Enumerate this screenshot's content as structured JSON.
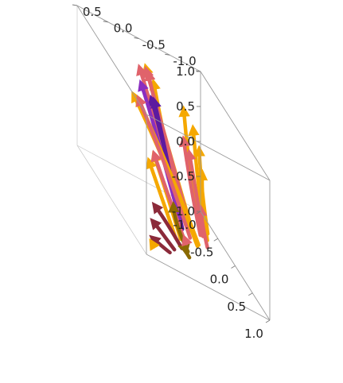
{
  "chart_data": {
    "type": "vector-stream-3d",
    "title": "",
    "xlabel": "",
    "ylabel": "",
    "zlabel": "",
    "x_range": [
      -1.0,
      1.0
    ],
    "y_range": [
      -1.0,
      1.0
    ],
    "z_range": [
      -1.0,
      1.0
    ],
    "x_ticks": [
      "-1.0",
      "-0.5",
      "0.0",
      "0.5",
      "1.0"
    ],
    "y_ticks": [
      "-1.0",
      "-0.5",
      "0.0",
      "0.5",
      "1.0"
    ],
    "z_ticks": [
      "-1.0",
      "-0.5",
      "0.0",
      "0.5",
      "1.0"
    ],
    "box": true,
    "colors": {
      "gold": "#f5a800",
      "salmon": "#e0636b",
      "purple": "#5c1aa0",
      "violet": "#8a2ec0",
      "maroon": "#8b2a3a",
      "olive": "#8a6a00"
    },
    "streamlines": [
      {
        "color": "gold",
        "points": [
          [
            0.3,
            -0.15,
            -0.7
          ],
          [
            0.05,
            0.0,
            -0.1
          ],
          [
            -0.15,
            0.15,
            0.5
          ],
          [
            -0.3,
            0.28,
            1.0
          ]
        ]
      },
      {
        "color": "gold",
        "points": [
          [
            0.18,
            -0.1,
            -0.7
          ],
          [
            -0.02,
            0.05,
            -0.1
          ],
          [
            -0.12,
            0.15,
            0.5
          ],
          [
            -0.18,
            0.22,
            0.9
          ]
        ]
      },
      {
        "color": "salmon",
        "points": [
          [
            0.26,
            -0.14,
            -0.7
          ],
          [
            0.0,
            0.04,
            -0.1
          ],
          [
            -0.18,
            0.17,
            0.5
          ],
          [
            -0.26,
            0.26,
            0.95
          ]
        ]
      },
      {
        "color": "salmon",
        "points": [
          [
            0.05,
            -0.1,
            -0.7
          ],
          [
            -0.2,
            0.0,
            -0.1
          ],
          [
            -0.45,
            0.1,
            0.4
          ],
          [
            -0.62,
            0.2,
            0.78
          ]
        ]
      },
      {
        "color": "salmon",
        "points": [
          [
            0.15,
            -0.18,
            -0.7
          ],
          [
            -0.1,
            -0.05,
            -0.1
          ],
          [
            -0.35,
            0.05,
            0.45
          ],
          [
            -0.52,
            0.15,
            0.85
          ]
        ]
      },
      {
        "color": "purple",
        "points": [
          [
            0.35,
            0.05,
            -0.7
          ],
          [
            0.2,
            0.15,
            -0.1
          ],
          [
            0.05,
            0.25,
            0.4
          ],
          [
            -0.05,
            0.33,
            0.72
          ]
        ]
      },
      {
        "color": "purple",
        "points": [
          [
            0.4,
            0.1,
            -0.7
          ],
          [
            0.3,
            0.2,
            -0.1
          ],
          [
            0.2,
            0.3,
            0.45
          ],
          [
            0.12,
            0.38,
            0.8
          ]
        ]
      },
      {
        "color": "violet",
        "points": [
          [
            0.2,
            0.0,
            -0.7
          ],
          [
            -0.05,
            0.12,
            -0.1
          ],
          [
            -0.25,
            0.22,
            0.4
          ],
          [
            -0.4,
            0.3,
            0.68
          ]
        ]
      },
      {
        "color": "gold",
        "points": [
          [
            0.55,
            -0.1,
            -0.7
          ],
          [
            0.5,
            0.2,
            -0.1
          ],
          [
            0.45,
            0.5,
            0.4
          ],
          [
            0.4,
            0.8,
            0.85
          ]
        ]
      },
      {
        "color": "gold",
        "points": [
          [
            0.6,
            -0.05,
            -0.7
          ],
          [
            0.55,
            0.25,
            -0.1
          ],
          [
            0.5,
            0.55,
            0.42
          ],
          [
            0.45,
            0.9,
            0.9
          ]
        ]
      },
      {
        "color": "salmon",
        "points": [
          [
            0.48,
            0.0,
            -0.7
          ],
          [
            0.42,
            0.25,
            -0.1
          ],
          [
            0.38,
            0.5,
            0.4
          ],
          [
            0.33,
            0.75,
            0.82
          ]
        ]
      },
      {
        "color": "gold",
        "points": [
          [
            0.25,
            -0.3,
            -0.7
          ],
          [
            -0.2,
            -0.4,
            -0.3
          ],
          [
            -0.6,
            -0.55,
            0.05
          ],
          [
            -0.95,
            -0.7,
            0.35
          ]
        ]
      },
      {
        "color": "gold",
        "points": [
          [
            0.2,
            -0.4,
            -0.7
          ],
          [
            -0.25,
            -0.55,
            -0.4
          ],
          [
            -0.6,
            -0.7,
            -0.1
          ],
          [
            -0.95,
            -0.85,
            0.15
          ]
        ]
      },
      {
        "color": "gold",
        "points": [
          [
            0.1,
            -0.5,
            -0.7
          ],
          [
            -0.3,
            -0.65,
            -0.5
          ],
          [
            -0.65,
            -0.8,
            -0.3
          ],
          [
            -0.95,
            -0.95,
            -0.1
          ]
        ]
      },
      {
        "color": "gold",
        "points": [
          [
            0.0,
            -0.55,
            -0.85
          ],
          [
            -0.4,
            -0.7,
            -0.7
          ],
          [
            -0.7,
            -0.85,
            -0.55
          ],
          [
            -0.95,
            -1.0,
            -0.42
          ]
        ]
      },
      {
        "color": "salmon",
        "points": [
          [
            0.15,
            -0.35,
            -0.75
          ],
          [
            -0.15,
            -0.4,
            -0.45
          ],
          [
            -0.4,
            -0.45,
            -0.15
          ],
          [
            -0.6,
            -0.5,
            0.1
          ]
        ]
      },
      {
        "color": "salmon",
        "points": [
          [
            0.05,
            -0.45,
            -0.8
          ],
          [
            -0.25,
            -0.55,
            -0.55
          ],
          [
            -0.5,
            -0.6,
            -0.3
          ],
          [
            -0.7,
            -0.65,
            -0.1
          ]
        ]
      },
      {
        "color": "salmon",
        "points": [
          [
            0.0,
            -0.55,
            -0.95
          ],
          [
            -0.2,
            -0.6,
            -0.85
          ],
          [
            -0.35,
            -0.65,
            -0.75
          ],
          [
            -0.45,
            -0.7,
            -0.68
          ]
        ]
      },
      {
        "color": "gold",
        "points": [
          [
            0.65,
            0.25,
            -0.7
          ],
          [
            0.75,
            0.45,
            -0.3
          ],
          [
            0.85,
            0.65,
            0.1
          ],
          [
            0.95,
            0.85,
            0.45
          ]
        ]
      },
      {
        "color": "gold",
        "points": [
          [
            0.6,
            0.3,
            -0.75
          ],
          [
            0.7,
            0.5,
            -0.4
          ],
          [
            0.8,
            0.7,
            -0.05
          ],
          [
            0.9,
            0.9,
            0.3
          ]
        ]
      },
      {
        "color": "salmon",
        "points": [
          [
            0.55,
            0.15,
            -0.7
          ],
          [
            0.62,
            0.35,
            -0.35
          ],
          [
            0.7,
            0.55,
            0.0
          ],
          [
            0.78,
            0.75,
            0.38
          ]
        ]
      },
      {
        "color": "maroon",
        "points": [
          [
            0.6,
            0.2,
            -0.85
          ],
          [
            0.7,
            0.4,
            -0.65
          ],
          [
            0.8,
            0.6,
            -0.45
          ],
          [
            0.88,
            0.8,
            -0.3
          ]
        ]
      },
      {
        "color": "maroon",
        "points": [
          [
            0.65,
            0.35,
            -0.9
          ],
          [
            0.75,
            0.55,
            -0.75
          ],
          [
            0.85,
            0.7,
            -0.62
          ],
          [
            0.92,
            0.85,
            -0.52
          ]
        ]
      },
      {
        "color": "maroon",
        "points": [
          [
            0.7,
            0.45,
            -0.95
          ],
          [
            0.8,
            0.6,
            -0.88
          ],
          [
            0.9,
            0.75,
            -0.8
          ],
          [
            0.96,
            0.88,
            -0.74
          ]
        ]
      },
      {
        "color": "olive",
        "points": [
          [
            0.6,
            0.1,
            -0.85
          ],
          [
            0.65,
            0.3,
            -0.6
          ],
          [
            0.72,
            0.4,
            -0.35
          ],
          [
            0.8,
            0.45,
            -0.2
          ]
        ]
      },
      {
        "color": "olive",
        "points": [
          [
            0.55,
            0.05,
            -0.95
          ],
          [
            0.62,
            0.15,
            -0.85
          ],
          [
            0.7,
            0.25,
            -0.78
          ],
          [
            0.78,
            0.3,
            -0.74
          ]
        ]
      },
      {
        "color": "gold",
        "points": [
          [
            0.85,
            0.8,
            -0.9
          ],
          [
            0.88,
            0.85,
            -0.85
          ]
        ]
      },
      {
        "color": "salmon",
        "points": [
          [
            0.2,
            -0.1,
            -0.95
          ],
          [
            0.18,
            -0.08,
            -0.9
          ]
        ]
      }
    ]
  }
}
